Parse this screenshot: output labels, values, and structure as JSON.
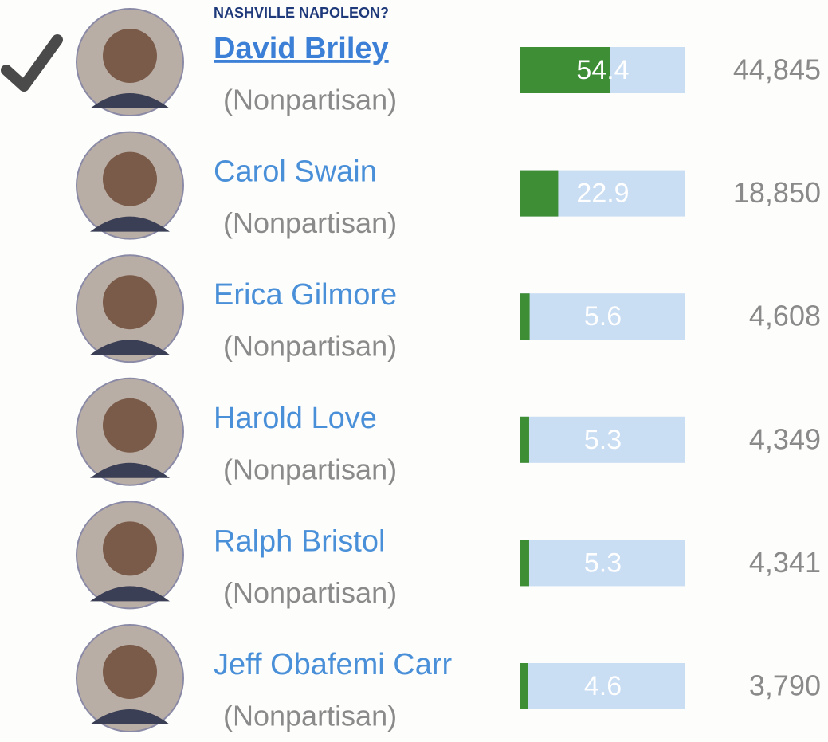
{
  "header": {
    "title": "NASHVILLE NAPOLEON?"
  },
  "bar_scale": [
    0,
    100
  ],
  "candidates": [
    {
      "name": "David Briley",
      "party": "(Nonpartisan)",
      "percent": 54.4,
      "votes": "44,845",
      "winner": true
    },
    {
      "name": "Carol Swain",
      "party": "(Nonpartisan)",
      "percent": 22.9,
      "votes": "18,850",
      "winner": false
    },
    {
      "name": "Erica Gilmore",
      "party": "(Nonpartisan)",
      "percent": 5.6,
      "votes": "4,608",
      "winner": false
    },
    {
      "name": "Harold Love",
      "party": "(Nonpartisan)",
      "percent": 5.3,
      "votes": "4,349",
      "winner": false
    },
    {
      "name": "Ralph Bristol",
      "party": "(Nonpartisan)",
      "percent": 5.3,
      "votes": "4,341",
      "winner": false
    },
    {
      "name": "Jeff Obafemi Carr",
      "party": "(Nonpartisan)",
      "percent": 4.6,
      "votes": "3,790",
      "winner": false
    }
  ]
}
